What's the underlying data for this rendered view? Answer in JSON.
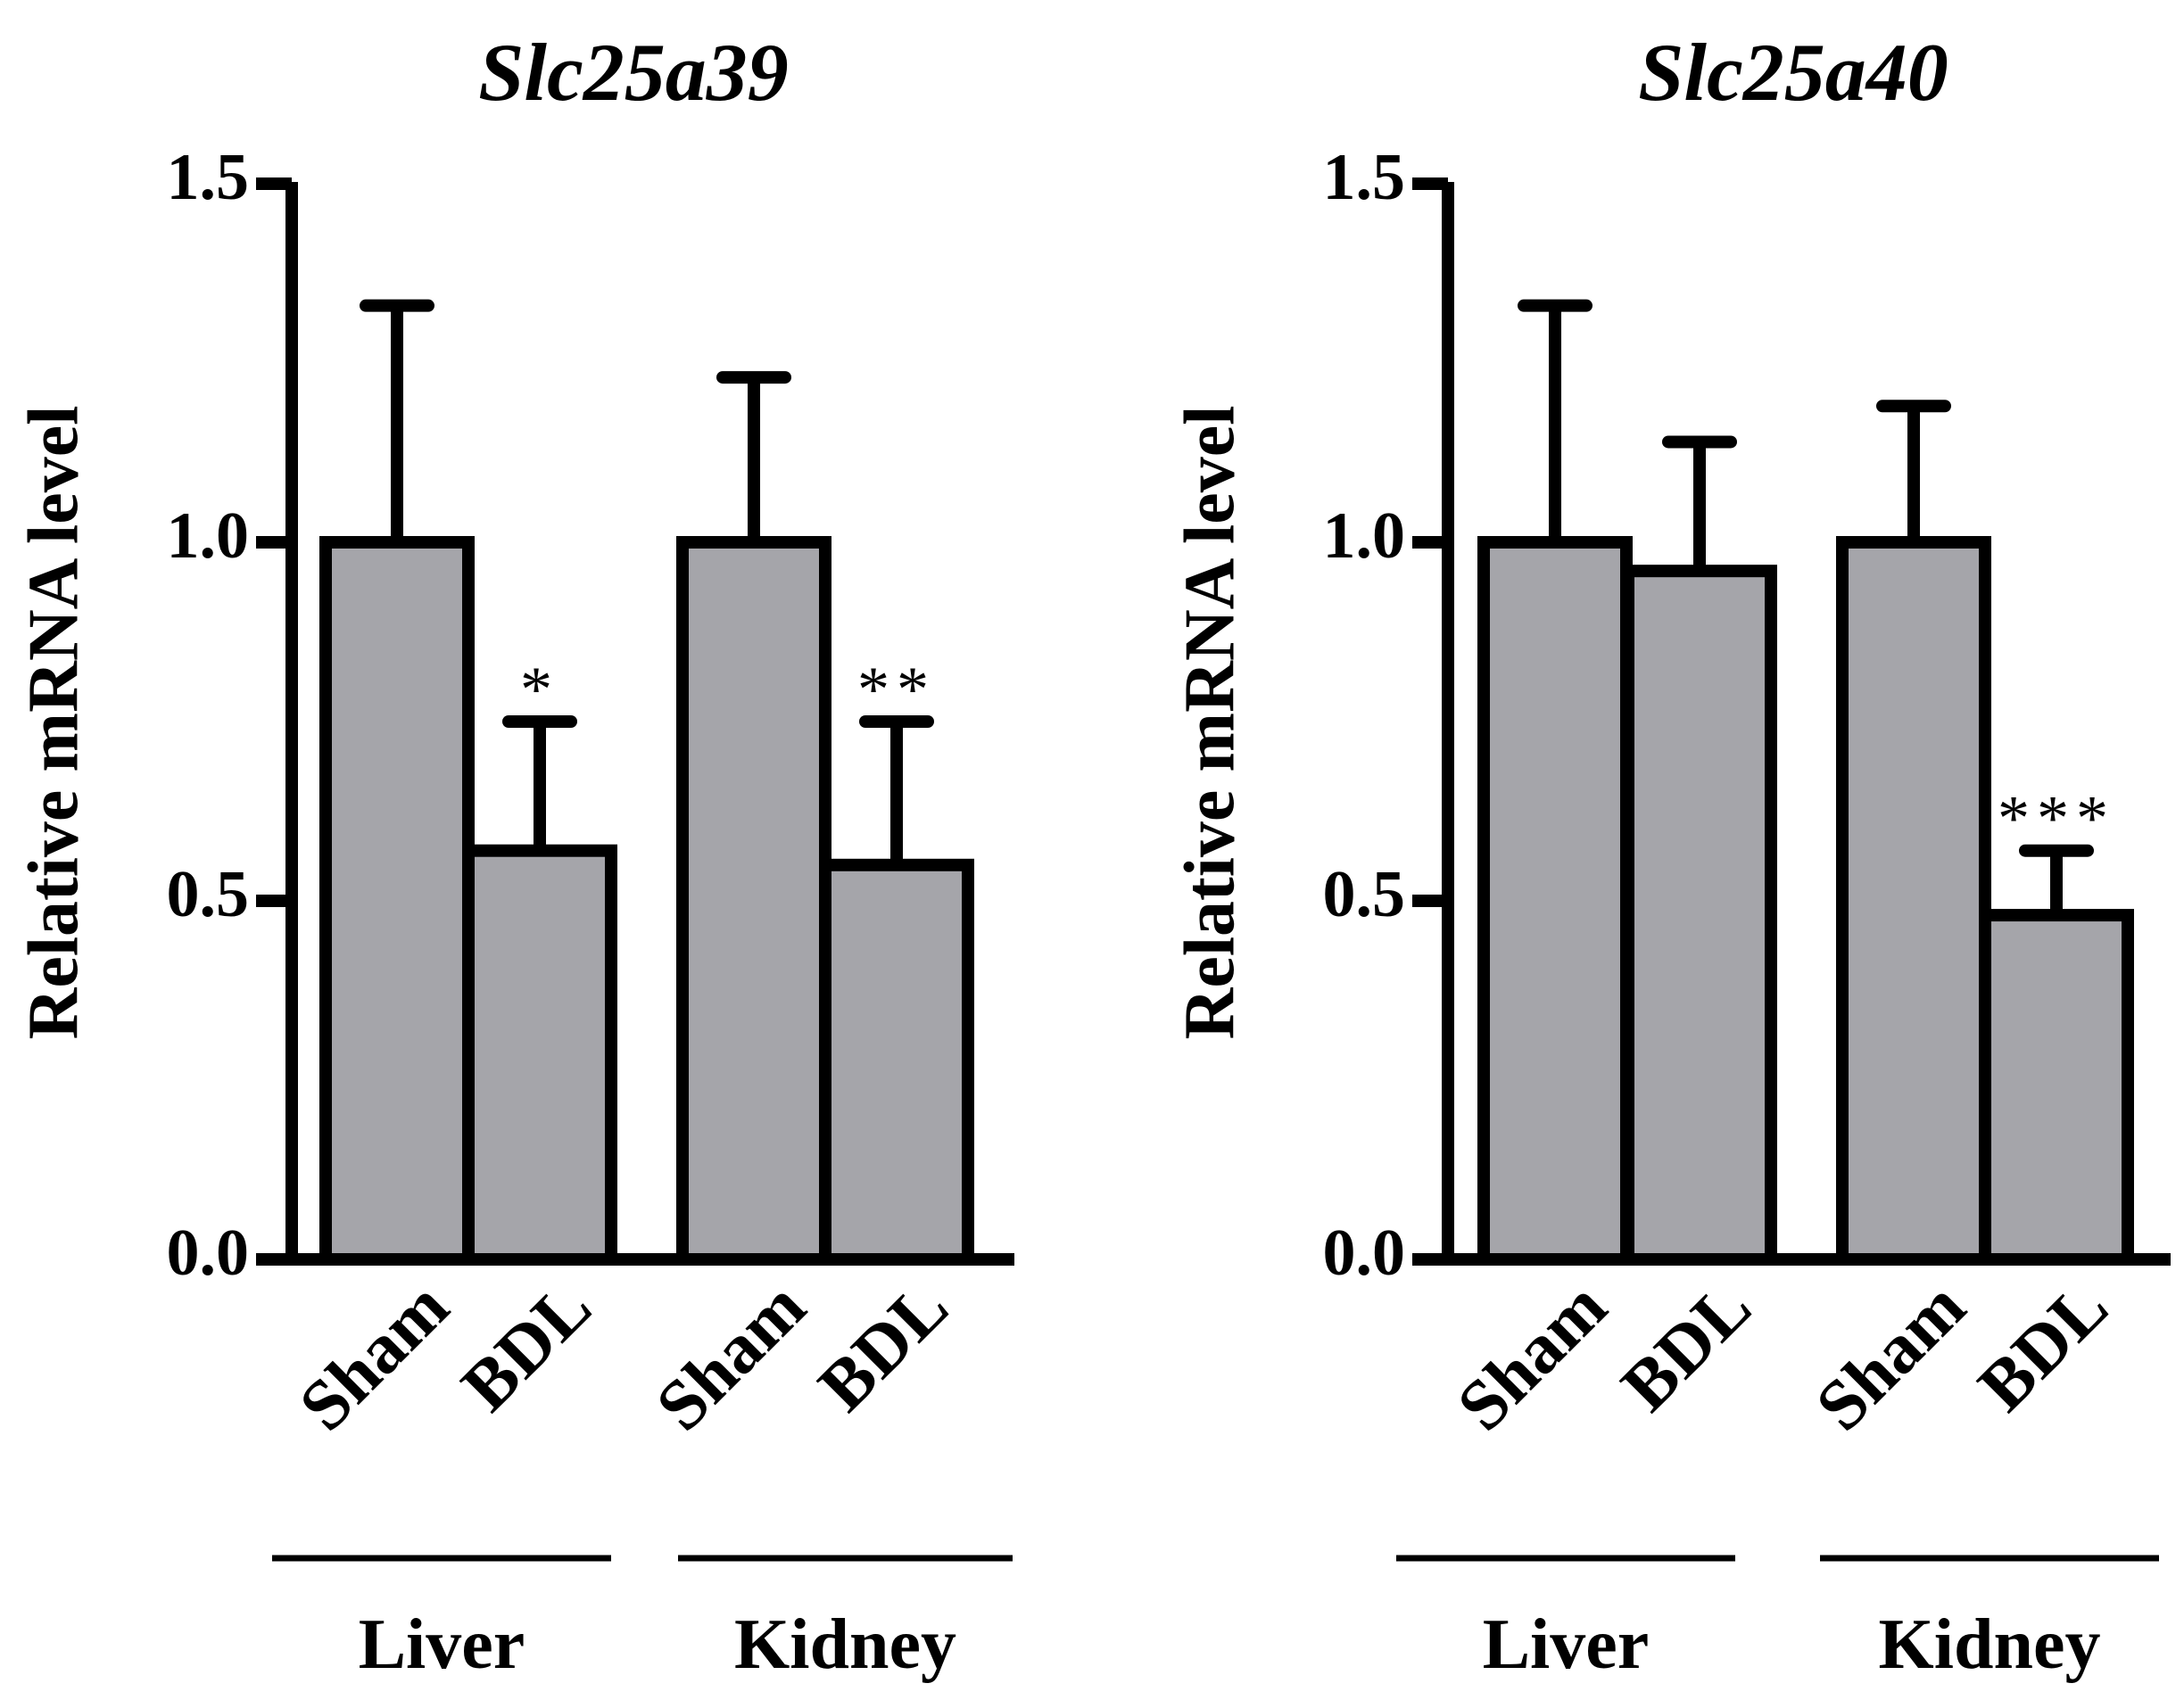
{
  "chart_data": [
    {
      "type": "bar",
      "title": "Slc25a39",
      "ylabel": "Relative mRNA level",
      "xlabel": "",
      "ylim": [
        0,
        1.5
      ],
      "yticks": [
        "0.0",
        "0.5",
        "1.0",
        "1.5"
      ],
      "categories": [
        "Sham",
        "BDL",
        "Sham",
        "BDL"
      ],
      "groups": [
        {
          "label": "Liver",
          "bars": [
            0,
            1
          ]
        },
        {
          "label": "Kidney",
          "bars": [
            2,
            3
          ]
        }
      ],
      "values": [
        1.0,
        0.57,
        1.0,
        0.55
      ],
      "errors": [
        0.33,
        0.18,
        0.23,
        0.2
      ],
      "significance": [
        "",
        "*",
        "",
        "**"
      ],
      "colors": {
        "bar": "#a5a5aa",
        "stroke": "#000000"
      }
    },
    {
      "type": "bar",
      "title": "Slc25a40",
      "ylabel": "Relative mRNA level",
      "xlabel": "",
      "ylim": [
        0,
        1.5
      ],
      "yticks": [
        "0.0",
        "0.5",
        "1.0",
        "1.5"
      ],
      "categories": [
        "Sham",
        "BDL",
        "Sham",
        "BDL"
      ],
      "groups": [
        {
          "label": "Liver",
          "bars": [
            0,
            1
          ]
        },
        {
          "label": "Kidney",
          "bars": [
            2,
            3
          ]
        }
      ],
      "values": [
        1.0,
        0.96,
        1.0,
        0.48
      ],
      "errors": [
        0.33,
        0.18,
        0.19,
        0.09
      ],
      "significance": [
        "",
        "",
        "",
        "***"
      ],
      "colors": {
        "bar": "#a5a5aa",
        "stroke": "#000000"
      }
    }
  ]
}
